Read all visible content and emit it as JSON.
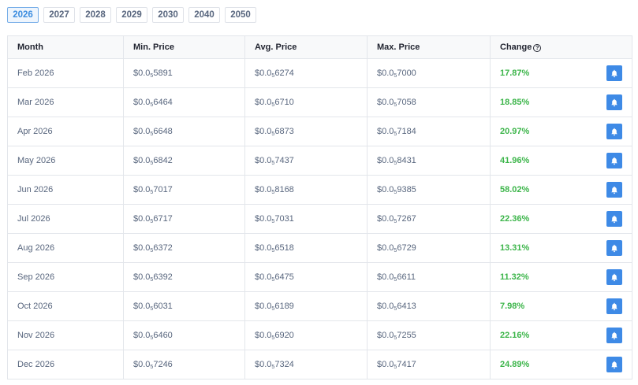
{
  "year_tabs": [
    {
      "label": "2026",
      "active": true
    },
    {
      "label": "2027",
      "active": false
    },
    {
      "label": "2028",
      "active": false
    },
    {
      "label": "2029",
      "active": false
    },
    {
      "label": "2030",
      "active": false
    },
    {
      "label": "2040",
      "active": false
    },
    {
      "label": "2050",
      "active": false
    }
  ],
  "table": {
    "headers": {
      "month": "Month",
      "min_price": "Min. Price",
      "avg_price": "Avg. Price",
      "max_price": "Max. Price",
      "change": "Change",
      "change_help_icon": "?"
    },
    "price_prefix": "$0.0",
    "price_subscript": "5",
    "alert_icon": "bell-icon",
    "colors": {
      "positive_change": "#3cb54a",
      "alert_button": "#3e8ae6",
      "active_tab": "#3b8cdf"
    },
    "rows": [
      {
        "month": "Feb 2026",
        "min": "5891",
        "avg": "6274",
        "max": "7000",
        "change": "17.87%"
      },
      {
        "month": "Mar 2026",
        "min": "6464",
        "avg": "6710",
        "max": "7058",
        "change": "18.85%"
      },
      {
        "month": "Apr 2026",
        "min": "6648",
        "avg": "6873",
        "max": "7184",
        "change": "20.97%"
      },
      {
        "month": "May 2026",
        "min": "6842",
        "avg": "7437",
        "max": "8431",
        "change": "41.96%"
      },
      {
        "month": "Jun 2026",
        "min": "7017",
        "avg": "8168",
        "max": "9385",
        "change": "58.02%"
      },
      {
        "month": "Jul 2026",
        "min": "6717",
        "avg": "7031",
        "max": "7267",
        "change": "22.36%"
      },
      {
        "month": "Aug 2026",
        "min": "6372",
        "avg": "6518",
        "max": "6729",
        "change": "13.31%"
      },
      {
        "month": "Sep 2026",
        "min": "6392",
        "avg": "6475",
        "max": "6611",
        "change": "11.32%"
      },
      {
        "month": "Oct 2026",
        "min": "6031",
        "avg": "6189",
        "max": "6413",
        "change": "7.98%"
      },
      {
        "month": "Nov 2026",
        "min": "6460",
        "avg": "6920",
        "max": "7255",
        "change": "22.16%"
      },
      {
        "month": "Dec 2026",
        "min": "7246",
        "avg": "7324",
        "max": "7417",
        "change": "24.89%"
      }
    ]
  }
}
